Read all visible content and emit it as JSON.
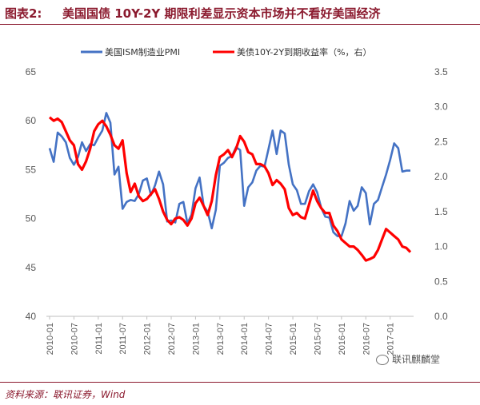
{
  "header": {
    "figure_label": "图表2:",
    "title": "美国国债 10Y-2Y 期限利差显示资本市场并不看好美国经济"
  },
  "footer": {
    "source": "资料来源：联讯证券，Wind",
    "watermark": "联讯麒麟堂"
  },
  "colors": {
    "pmi": "#4472c4",
    "spread": "#ff0000",
    "brand": "#8b1a2e"
  },
  "chart_data": {
    "type": "line",
    "title": "",
    "legend_position": "top",
    "grid": false,
    "x_tick_labels": [
      "2010-01",
      "2010-07",
      "2011-01",
      "2011-07",
      "2012-01",
      "2012-07",
      "2013-01",
      "2013-07",
      "2014-01",
      "2014-07",
      "2015-01",
      "2015-07",
      "2016-01",
      "2016-07",
      "2017-01"
    ],
    "y_left": {
      "lim": [
        40,
        65
      ],
      "ticks": [
        "40",
        "45",
        "50",
        "55",
        "60",
        "65"
      ]
    },
    "y_right": {
      "lim": [
        0.0,
        3.5
      ],
      "ticks": [
        "0.0",
        "0.5",
        "1.0",
        "1.5",
        "2.0",
        "2.5",
        "3.0",
        "3.5"
      ]
    },
    "series": [
      {
        "name": "美国ISM制造业PMI",
        "axis": "left",
        "x": [
          "2010-01",
          "2010-02",
          "2010-03",
          "2010-04",
          "2010-05",
          "2010-06",
          "2010-07",
          "2010-08",
          "2010-09",
          "2010-10",
          "2010-11",
          "2010-12",
          "2011-01",
          "2011-02",
          "2011-03",
          "2011-04",
          "2011-05",
          "2011-06",
          "2011-07",
          "2011-08",
          "2011-09",
          "2011-10",
          "2011-11",
          "2011-12",
          "2012-01",
          "2012-02",
          "2012-03",
          "2012-04",
          "2012-05",
          "2012-06",
          "2012-07",
          "2012-08",
          "2012-09",
          "2012-10",
          "2012-11",
          "2012-12",
          "2013-01",
          "2013-02",
          "2013-03",
          "2013-04",
          "2013-05",
          "2013-06",
          "2013-07",
          "2013-08",
          "2013-09",
          "2013-10",
          "2013-11",
          "2013-12",
          "2014-01",
          "2014-02",
          "2014-03",
          "2014-04",
          "2014-05",
          "2014-06",
          "2014-07",
          "2014-08",
          "2014-09",
          "2014-10",
          "2014-11",
          "2014-12",
          "2015-01",
          "2015-02",
          "2015-03",
          "2015-04",
          "2015-05",
          "2015-06",
          "2015-07",
          "2015-08",
          "2015-09",
          "2015-10",
          "2015-11",
          "2015-12",
          "2016-01",
          "2016-02",
          "2016-03",
          "2016-04",
          "2016-05",
          "2016-06",
          "2016-07",
          "2016-08",
          "2016-09",
          "2016-10",
          "2016-11",
          "2016-12",
          "2017-01",
          "2017-02",
          "2017-03",
          "2017-04",
          "2017-05",
          "2017-06"
        ],
        "values": [
          57.2,
          55.8,
          58.8,
          58.4,
          57.8,
          56.2,
          55.5,
          56.3,
          57.8,
          56.9,
          57.6,
          57.5,
          58.3,
          59.0,
          60.8,
          59.8,
          54.5,
          55.3,
          51.0,
          51.7,
          51.9,
          51.8,
          52.5,
          53.9,
          54.1,
          52.4,
          53.4,
          54.8,
          53.5,
          49.7,
          49.8,
          49.6,
          51.5,
          51.7,
          49.5,
          50.4,
          53.1,
          54.2,
          51.3,
          50.7,
          49.0,
          50.9,
          55.4,
          55.7,
          56.2,
          56.4,
          57.3,
          57.0,
          51.3,
          53.2,
          53.7,
          54.9,
          55.4,
          55.3,
          57.1,
          59.0,
          56.6,
          59.0,
          58.7,
          55.5,
          53.5,
          52.9,
          51.5,
          51.5,
          52.8,
          53.5,
          52.7,
          51.1,
          50.2,
          50.1,
          48.6,
          48.2,
          48.2,
          49.5,
          51.8,
          50.8,
          51.3,
          53.2,
          52.6,
          49.4,
          51.5,
          51.9,
          53.2,
          54.5,
          56.0,
          57.7,
          57.2,
          54.8,
          54.9,
          54.9
        ]
      },
      {
        "name": "美债10Y-2Y到期收益率（%，右）",
        "axis": "right",
        "x": [
          "2010-01",
          "2010-02",
          "2010-03",
          "2010-04",
          "2010-05",
          "2010-06",
          "2010-07",
          "2010-08",
          "2010-09",
          "2010-10",
          "2010-11",
          "2010-12",
          "2011-01",
          "2011-02",
          "2011-03",
          "2011-04",
          "2011-05",
          "2011-06",
          "2011-07",
          "2011-08",
          "2011-09",
          "2011-10",
          "2011-11",
          "2011-12",
          "2012-01",
          "2012-02",
          "2012-03",
          "2012-04",
          "2012-05",
          "2012-06",
          "2012-07",
          "2012-08",
          "2012-09",
          "2012-10",
          "2012-11",
          "2012-12",
          "2013-01",
          "2013-02",
          "2013-03",
          "2013-04",
          "2013-05",
          "2013-06",
          "2013-07",
          "2013-08",
          "2013-09",
          "2013-10",
          "2013-11",
          "2013-12",
          "2014-01",
          "2014-02",
          "2014-03",
          "2014-04",
          "2014-05",
          "2014-06",
          "2014-07",
          "2014-08",
          "2014-09",
          "2014-10",
          "2014-11",
          "2014-12",
          "2015-01",
          "2015-02",
          "2015-03",
          "2015-04",
          "2015-05",
          "2015-06",
          "2015-07",
          "2015-08",
          "2015-09",
          "2015-10",
          "2015-11",
          "2015-12",
          "2016-01",
          "2016-02",
          "2016-03",
          "2016-04",
          "2016-05",
          "2016-06",
          "2016-07",
          "2016-08",
          "2016-09",
          "2016-10",
          "2016-11",
          "2016-12",
          "2017-01",
          "2017-02",
          "2017-03",
          "2017-04",
          "2017-05",
          "2017-06"
        ],
        "values": [
          2.85,
          2.8,
          2.83,
          2.78,
          2.65,
          2.52,
          2.45,
          2.18,
          2.1,
          2.22,
          2.4,
          2.65,
          2.75,
          2.8,
          2.72,
          2.6,
          2.45,
          2.4,
          2.52,
          2.05,
          1.78,
          1.9,
          1.72,
          1.65,
          1.68,
          1.75,
          1.82,
          1.68,
          1.5,
          1.38,
          1.32,
          1.4,
          1.42,
          1.38,
          1.3,
          1.4,
          1.62,
          1.7,
          1.58,
          1.45,
          1.65,
          2.02,
          2.28,
          2.32,
          2.38,
          2.28,
          2.4,
          2.58,
          2.5,
          2.35,
          2.32,
          2.18,
          2.18,
          2.15,
          2.05,
          1.88,
          1.95,
          1.9,
          1.82,
          1.55,
          1.45,
          1.48,
          1.42,
          1.4,
          1.6,
          1.8,
          1.65,
          1.55,
          1.48,
          1.48,
          1.3,
          1.22,
          1.1,
          1.05,
          1.0,
          1.0,
          0.95,
          0.88,
          0.8,
          0.82,
          0.85,
          0.95,
          1.1,
          1.25,
          1.2,
          1.15,
          1.1,
          1.0,
          0.98,
          0.92
        ]
      }
    ]
  }
}
